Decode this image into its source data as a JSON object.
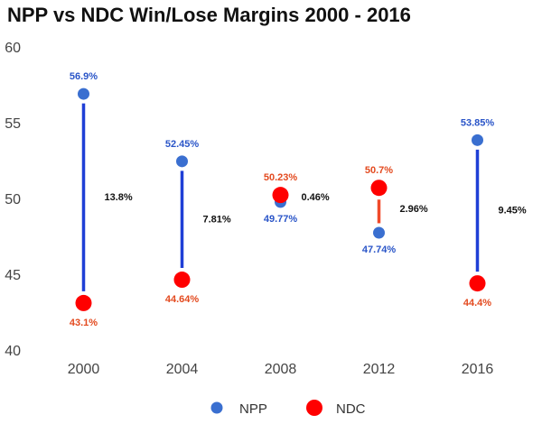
{
  "chart_data": {
    "type": "scatter",
    "title": "NPP vs NDC Win/Lose Margins 2000 - 2016",
    "xlabel": "",
    "ylabel": "",
    "categories": [
      "2000",
      "2004",
      "2008",
      "2012",
      "2016"
    ],
    "ylim": [
      40,
      60
    ],
    "yticks": [
      "40",
      "45",
      "50",
      "55",
      "60"
    ],
    "grid": false,
    "legend_position": "bottom",
    "series": [
      {
        "name": "NPP",
        "color": "#3a6fd0",
        "values": [
          56.9,
          52.45,
          49.77,
          47.74,
          53.85
        ],
        "labels": [
          "56.9%",
          "52.45%",
          "49.77%",
          "47.74%",
          "53.85%"
        ]
      },
      {
        "name": "NDC",
        "color": "#ff0000",
        "values": [
          43.1,
          44.64,
          50.23,
          50.7,
          44.4
        ],
        "labels": [
          "43.1%",
          "44.64%",
          "50.23%",
          "50.7%",
          "44.4%"
        ]
      }
    ],
    "margins": {
      "labels": [
        "13.8%",
        "7.81%",
        "0.46%",
        "2.96%",
        "9.45%"
      ],
      "colors": [
        "#1f3fd6",
        "#1f3fd6",
        "#1f3fd6",
        "#f04a2a",
        "#1f3fd6"
      ]
    },
    "axis_label_color": "#444444",
    "npp_label_color": "#2a55c8",
    "ndc_label_color": "#e34a1f"
  }
}
